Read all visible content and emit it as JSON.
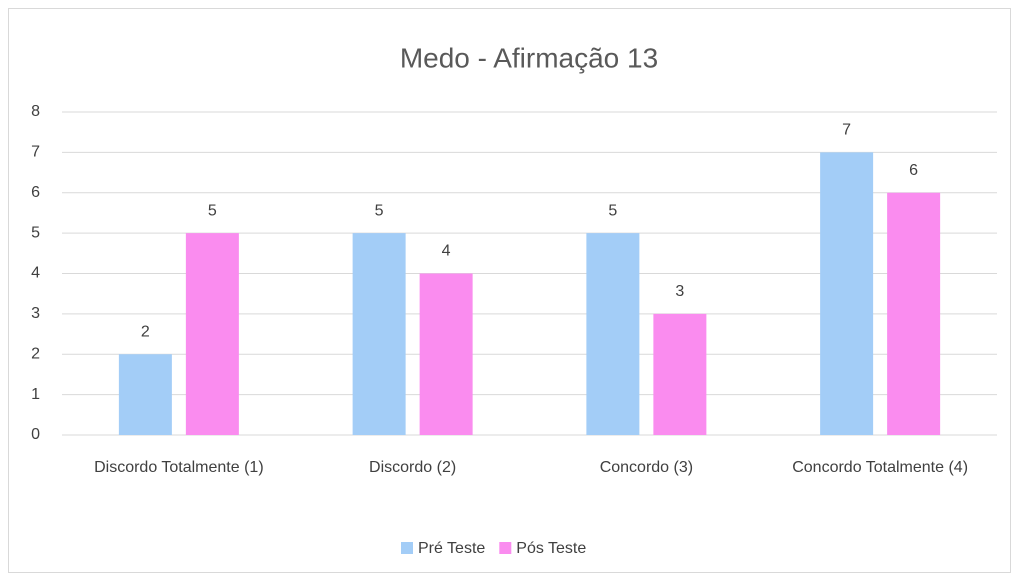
{
  "chart_data": {
    "type": "bar",
    "title": "Medo - Afirmação 13",
    "categories": [
      "Discordo Totalmente (1)",
      "Discordo (2)",
      "Concordo (3)",
      "Concordo Totalmente (4)"
    ],
    "series": [
      {
        "name": "Pré Teste",
        "color": "#a3cdf7",
        "values": [
          2,
          5,
          5,
          7
        ]
      },
      {
        "name": "Pós Teste",
        "color": "#fa8cef",
        "values": [
          5,
          4,
          3,
          6
        ]
      }
    ],
    "ylim": [
      0,
      8
    ],
    "yticks": [
      0,
      1,
      2,
      3,
      4,
      5,
      6,
      7,
      8
    ],
    "grid": true,
    "legend": "bottom"
  }
}
